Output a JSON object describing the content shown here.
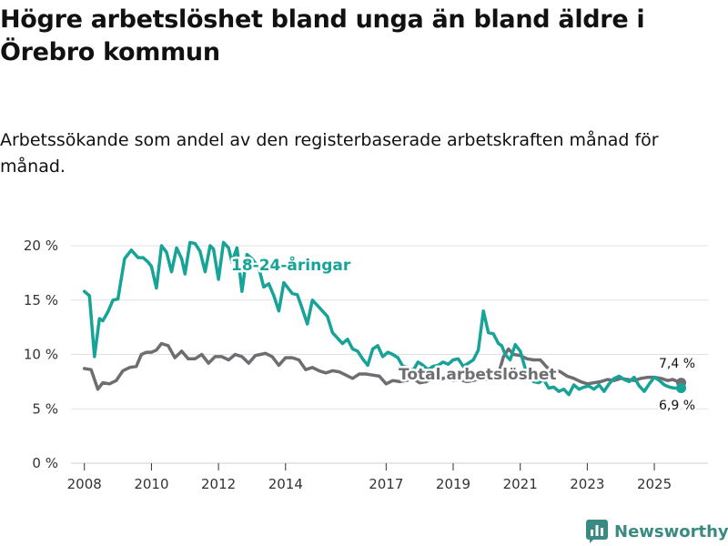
{
  "title": "Högre arbetslöshet bland unga än bland äldre i Örebro kommun",
  "subtitle": "Arbetssökande som andel av den registerbaserade arbetskraften månad för månad.",
  "brand": "Newsworthy",
  "colors": {
    "youth": "#17a397",
    "total": "#6e6d71",
    "brand": "#3a8a82"
  },
  "chart_data": {
    "type": "line",
    "title": "Högre arbetslöshet bland unga än bland äldre i Örebro kommun",
    "xlabel": "",
    "ylabel": "",
    "ylim": [
      0,
      20
    ],
    "xlim": [
      2007.6,
      2026.6
    ],
    "y_ticks": [
      0,
      5,
      10,
      15,
      20
    ],
    "y_tick_labels": [
      "0 %",
      "5 %",
      "10 %",
      "15 %",
      "20 %"
    ],
    "x_ticks": [
      2008,
      2010,
      2012,
      2014,
      2017,
      2019,
      2021,
      2023,
      2025
    ],
    "x_tick_labels": [
      "2008",
      "2010",
      "2012",
      "2014",
      "2017",
      "2019",
      "2021",
      "2023",
      "2025"
    ],
    "grid": true,
    "series": [
      {
        "name": "18-24-åringar",
        "label": "18-24-åringar",
        "end_label": "6,9 %",
        "x": [
          2008.0,
          2008.15,
          2008.3,
          2008.45,
          2008.55,
          2008.7,
          2008.85,
          2009.0,
          2009.2,
          2009.4,
          2009.6,
          2009.75,
          2009.9,
          2010.0,
          2010.15,
          2010.3,
          2010.45,
          2010.6,
          2010.75,
          2010.9,
          2011.0,
          2011.15,
          2011.3,
          2011.45,
          2011.6,
          2011.75,
          2011.85,
          2012.0,
          2012.15,
          2012.3,
          2012.4,
          2012.55,
          2012.7,
          2012.85,
          2013.0,
          2013.2,
          2013.35,
          2013.5,
          2013.65,
          2013.8,
          2013.95,
          2014.1,
          2014.2,
          2014.35,
          2014.5,
          2014.65,
          2014.8,
          2014.95,
          2015.1,
          2015.25,
          2015.4,
          2015.55,
          2015.7,
          2015.85,
          2016.0,
          2016.15,
          2016.3,
          2016.45,
          2016.6,
          2016.75,
          2016.9,
          2017.05,
          2017.2,
          2017.35,
          2017.5,
          2017.65,
          2017.8,
          2017.95,
          2018.1,
          2018.25,
          2018.4,
          2018.55,
          2018.7,
          2018.85,
          2019.0,
          2019.15,
          2019.3,
          2019.45,
          2019.6,
          2019.75,
          2019.9,
          2020.05,
          2020.2,
          2020.35,
          2020.45,
          2020.55,
          2020.7,
          2020.85,
          2021.0,
          2021.15,
          2021.3,
          2021.4,
          2021.55,
          2021.7,
          2021.85,
          2022.0,
          2022.15,
          2022.3,
          2022.45,
          2022.6,
          2022.75,
          2022.9,
          2023.05,
          2023.2,
          2023.35,
          2023.5,
          2023.65,
          2023.8,
          2023.95,
          2024.1,
          2024.25,
          2024.4,
          2024.55,
          2024.7,
          2024.85,
          2025.0,
          2025.15,
          2025.3,
          2025.45,
          2025.6,
          2025.72,
          2025.8
        ],
        "values": [
          15.8,
          15.4,
          9.8,
          13.3,
          13.1,
          13.9,
          15.0,
          15.1,
          18.8,
          19.6,
          18.9,
          18.9,
          18.5,
          18.1,
          16.1,
          20.0,
          19.4,
          17.6,
          19.8,
          18.8,
          17.4,
          20.3,
          20.2,
          19.5,
          17.6,
          20.0,
          19.7,
          16.9,
          20.3,
          19.8,
          18.5,
          19.8,
          15.8,
          19.2,
          18.8,
          18.0,
          16.2,
          16.5,
          15.4,
          14.0,
          16.6,
          16.0,
          15.6,
          15.5,
          14.2,
          12.8,
          15.0,
          14.5,
          14.0,
          13.5,
          12.0,
          11.5,
          11.0,
          11.4,
          10.5,
          10.3,
          9.6,
          9.0,
          10.5,
          10.8,
          9.8,
          10.2,
          10.0,
          9.7,
          8.9,
          8.8,
          8.5,
          9.3,
          9.0,
          8.6,
          8.9,
          9.0,
          9.3,
          9.1,
          9.5,
          9.6,
          8.9,
          9.2,
          9.5,
          10.4,
          14.0,
          12.0,
          11.9,
          11.0,
          10.8,
          10.0,
          9.5,
          10.9,
          10.3,
          8.7,
          8.1,
          7.5,
          7.4,
          7.7,
          6.9,
          7.0,
          6.6,
          6.8,
          6.3,
          7.2,
          6.8,
          7.0,
          7.1,
          6.8,
          7.2,
          6.6,
          7.3,
          7.8,
          8.0,
          7.7,
          7.5,
          7.9,
          7.1,
          6.6,
          7.3,
          7.9,
          7.6,
          7.2,
          7.0,
          6.9,
          6.9,
          6.9
        ]
      },
      {
        "name": "Total arbetslöshet",
        "label": "Total arbetslöshet",
        "end_label": "7,4 %",
        "x": [
          2008.0,
          2008.2,
          2008.4,
          2008.55,
          2008.75,
          2008.95,
          2009.15,
          2009.35,
          2009.55,
          2009.7,
          2009.85,
          2010.0,
          2010.15,
          2010.3,
          2010.5,
          2010.7,
          2010.9,
          2011.1,
          2011.3,
          2011.5,
          2011.7,
          2011.9,
          2012.1,
          2012.3,
          2012.5,
          2012.7,
          2012.9,
          2013.1,
          2013.25,
          2013.4,
          2013.6,
          2013.8,
          2014.0,
          2014.2,
          2014.4,
          2014.6,
          2014.8,
          2015.0,
          2015.2,
          2015.4,
          2015.6,
          2015.8,
          2016.0,
          2016.2,
          2016.4,
          2016.6,
          2016.8,
          2017.0,
          2017.2,
          2017.4,
          2017.6,
          2017.8,
          2018.0,
          2018.2,
          2018.4,
          2018.6,
          2018.8,
          2019.0,
          2019.2,
          2019.4,
          2019.6,
          2019.8,
          2020.0,
          2020.2,
          2020.35,
          2020.5,
          2020.65,
          2020.8,
          2021.0,
          2021.2,
          2021.4,
          2021.6,
          2021.8,
          2022.0,
          2022.2,
          2022.4,
          2022.6,
          2022.8,
          2023.0,
          2023.2,
          2023.4,
          2023.6,
          2023.8,
          2024.0,
          2024.2,
          2024.4,
          2024.6,
          2024.8,
          2025.0,
          2025.2,
          2025.4,
          2025.55,
          2025.7,
          2025.8
        ],
        "values": [
          8.7,
          8.6,
          6.8,
          7.4,
          7.3,
          7.6,
          8.5,
          8.8,
          8.9,
          10.0,
          10.2,
          10.2,
          10.4,
          11.0,
          10.8,
          9.7,
          10.3,
          9.6,
          9.6,
          10.0,
          9.2,
          9.8,
          9.8,
          9.5,
          10.0,
          9.8,
          9.2,
          9.9,
          10.0,
          10.1,
          9.8,
          9.0,
          9.7,
          9.7,
          9.5,
          8.6,
          8.8,
          8.5,
          8.3,
          8.5,
          8.4,
          8.1,
          7.8,
          8.2,
          8.2,
          8.1,
          8.0,
          7.3,
          7.6,
          7.5,
          7.6,
          7.8,
          7.4,
          7.5,
          7.8,
          7.7,
          7.9,
          7.6,
          7.7,
          7.5,
          7.6,
          7.8,
          7.7,
          7.9,
          8.2,
          9.8,
          10.5,
          10.0,
          9.9,
          9.6,
          9.5,
          9.5,
          8.8,
          8.6,
          8.4,
          8.0,
          7.8,
          7.5,
          7.3,
          7.4,
          7.5,
          7.7,
          7.6,
          7.8,
          7.7,
          7.6,
          7.8,
          7.9,
          7.9,
          7.8,
          7.6,
          7.7,
          7.5,
          7.4
        ]
      }
    ]
  }
}
